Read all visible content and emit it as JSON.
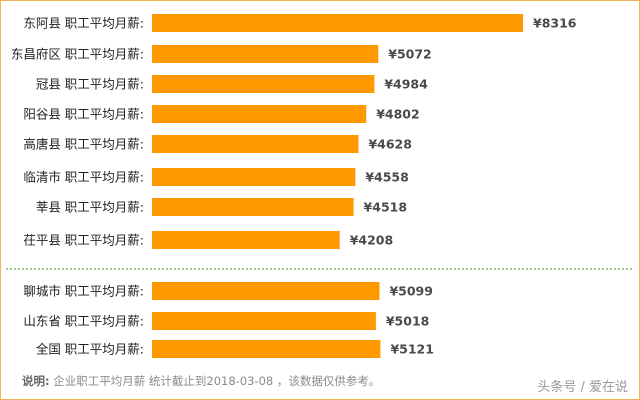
{
  "chart_data": {
    "type": "bar",
    "orientation": "horizontal",
    "colors": {
      "bar": "#ff9900",
      "divider": "#6aa84f",
      "border": "#f2b354"
    },
    "currency_symbol": "¥",
    "groups": [
      {
        "name": "counties",
        "categories": [
          "东阿县 职工平均月薪:",
          "东昌府区 职工平均月薪:",
          "冠县 职工平均月薪:",
          "阳谷县 职工平均月薪:",
          "高唐县 职工平均月薪:",
          "临清市 职工平均月薪:",
          "莘县 职工平均月薪:",
          "茌平县 职工平均月薪:"
        ],
        "values": [
          8316,
          5072,
          4984,
          4802,
          4628,
          4558,
          4518,
          4208
        ],
        "value_labels": [
          "¥8316",
          "¥5072",
          "¥4984",
          "¥4802",
          "¥4628",
          "¥4558",
          "¥4518",
          "¥4208"
        ]
      },
      {
        "name": "reference",
        "categories": [
          "聊城市 职工平均月薪:",
          "山东省 职工平均月薪:",
          "全国 职工平均月薪:"
        ],
        "values": [
          5099,
          5018,
          5121
        ],
        "value_labels": [
          "¥5099",
          "¥5018",
          "¥5121"
        ]
      }
    ],
    "xlim": [
      0,
      8316
    ]
  },
  "footnote": {
    "label": "说明:",
    "text": "企业职工平均月薪 统计截止到2018-03-08 ，该数据仅供参考。"
  },
  "watermark": "头条号 / 爱在说"
}
